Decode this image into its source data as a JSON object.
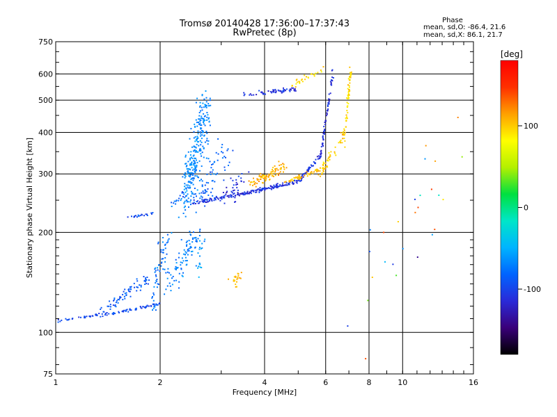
{
  "header": {
    "title": "Tromsø 20140428 17:36:00–17:37:43",
    "subtitle": "RwPretec (8p)",
    "phase_title": "Phase",
    "phase_o": "mean, sd,O: -86.4, 21.6",
    "phase_x": "mean, sd,X:  86.1, 21.7"
  },
  "colorbar": {
    "label": "[deg]",
    "range": [
      -180,
      180
    ],
    "ticks": [
      {
        "value": 100,
        "label": "100"
      },
      {
        "value": 0,
        "label": "0"
      },
      {
        "value": -100,
        "label": "-100"
      }
    ],
    "colors": [
      "#000000",
      "#3a007a",
      "#2a2ad8",
      "#0064ff",
      "#00b4ff",
      "#00e6c8",
      "#00e040",
      "#b4f000",
      "#ffff00",
      "#ffa000",
      "#ff3000",
      "#ff0000"
    ]
  },
  "chart_data": {
    "type": "scatter",
    "xlabel": "Frequency [MHz]",
    "ylabel": "Stationary phase Virtual Height [km]",
    "xscale": "log",
    "yscale": "log",
    "xlim": [
      1,
      16
    ],
    "ylim": [
      75,
      750
    ],
    "grid": true,
    "x_ticks": [
      {
        "value": 1,
        "label": "1"
      },
      {
        "value": 2,
        "label": "2"
      },
      {
        "value": 4,
        "label": "4"
      },
      {
        "value": 6,
        "label": "6"
      },
      {
        "value": 8,
        "label": "8"
      },
      {
        "value": 10,
        "label": "10"
      },
      {
        "value": 16,
        "label": "16"
      }
    ],
    "y_ticks": [
      {
        "value": 75,
        "label": "75"
      },
      {
        "value": 100,
        "label": "100"
      },
      {
        "value": 200,
        "label": "200"
      },
      {
        "value": 300,
        "label": "300"
      },
      {
        "value": 400,
        "label": "400"
      },
      {
        "value": 500,
        "label": "500"
      },
      {
        "value": 600,
        "label": "600"
      },
      {
        "value": 750,
        "label": "750"
      }
    ],
    "clusters": [
      {
        "x": [
          1.0,
          1.4
        ],
        "y": [
          108,
          114
        ],
        "phase": -100,
        "n": 34,
        "jx": 0.02,
        "jy": 0.012
      },
      {
        "x": [
          1.35,
          2.0
        ],
        "y": [
          112,
          122
        ],
        "phase": -95,
        "n": 60,
        "jx": 0.012,
        "jy": 0.012
      },
      {
        "x": [
          1.4,
          1.85
        ],
        "y": [
          118,
          145
        ],
        "phase": -88,
        "n": 70,
        "jx": 0.06,
        "jy": 0.05
      },
      {
        "x": [
          1.9,
          2.1
        ],
        "y": [
          120,
          200
        ],
        "phase": -78,
        "n": 60,
        "jx": 0.05,
        "jy": 0.12
      },
      {
        "x": [
          2.1,
          2.55
        ],
        "y": [
          135,
          200
        ],
        "phase": -72,
        "n": 90,
        "jx": 0.08,
        "jy": 0.1
      },
      {
        "x": [
          2.55,
          2.65
        ],
        "y": [
          150,
          190
        ],
        "phase": -55,
        "n": 18,
        "jx": 0.03,
        "jy": 0.06
      },
      {
        "x": [
          1.62,
          1.88
        ],
        "y": [
          222,
          228
        ],
        "phase": -95,
        "n": 20,
        "jx": 0.03,
        "jy": 0.01
      },
      {
        "x": [
          2.1,
          2.35
        ],
        "y": [
          240,
          260
        ],
        "phase": -85,
        "n": 16,
        "jx": 0.05,
        "jy": 0.04
      },
      {
        "x": [
          2.38,
          2.72
        ],
        "y": [
          250,
          490
        ],
        "phase": -68,
        "n": 280,
        "jx": 0.07,
        "jy": 0.2
      },
      {
        "x": [
          2.6,
          3.1
        ],
        "y": [
          245,
          360
        ],
        "phase": -80,
        "n": 70,
        "jx": 0.12,
        "jy": 0.12
      },
      {
        "x": [
          2.5,
          3.5
        ],
        "y": [
          245,
          262
        ],
        "phase": -110,
        "n": 80,
        "jx": 0.06,
        "jy": 0.02
      },
      {
        "x": [
          3.1,
          3.5
        ],
        "y": [
          252,
          300
        ],
        "phase": -112,
        "n": 35,
        "jx": 0.08,
        "jy": 0.08
      },
      {
        "x": [
          3.5,
          5.0
        ],
        "y": [
          262,
          285
        ],
        "phase": -110,
        "n": 110,
        "jx": 0.02,
        "jy": 0.02
      },
      {
        "x": [
          5.0,
          5.8
        ],
        "y": [
          285,
          340
        ],
        "phase": -110,
        "n": 55,
        "jx": 0.015,
        "jy": 0.025
      },
      {
        "x": [
          5.8,
          6.3
        ],
        "y": [
          340,
          610
        ],
        "phase": -112,
        "n": 65,
        "jx": 0.008,
        "jy": 0.05
      },
      {
        "x": [
          3.7,
          4.6
        ],
        "y": [
          280,
          318
        ],
        "phase": 110,
        "n": 90,
        "jx": 0.06,
        "jy": 0.05
      },
      {
        "x": [
          4.6,
          5.8
        ],
        "y": [
          282,
          310
        ],
        "phase": 105,
        "n": 55,
        "jx": 0.03,
        "jy": 0.025
      },
      {
        "x": [
          5.8,
          6.8
        ],
        "y": [
          300,
          400
        ],
        "phase": 100,
        "n": 55,
        "jx": 0.02,
        "jy": 0.05
      },
      {
        "x": [
          6.8,
          7.1
        ],
        "y": [
          380,
          630
        ],
        "phase": 95,
        "n": 60,
        "jx": 0.01,
        "jy": 0.06
      },
      {
        "x": [
          3.5,
          4.9
        ],
        "y": [
          520,
          540
        ],
        "phase": -110,
        "n": 55,
        "jx": 0.05,
        "jy": 0.02
      },
      {
        "x": [
          4.6,
          5.9
        ],
        "y": [
          540,
          620
        ],
        "phase": 95,
        "n": 30,
        "jx": 0.03,
        "jy": 0.025
      },
      {
        "x": [
          3.2,
          3.5
        ],
        "y": [
          138,
          155
        ],
        "phase": 110,
        "n": 22,
        "jx": 0.05,
        "jy": 0.04
      },
      {
        "x": [
          7.5,
          16.0
        ],
        "y": [
          100,
          480
        ],
        "phase": 0,
        "n": 28,
        "jx": 0.35,
        "jy": 0.55
      }
    ]
  }
}
